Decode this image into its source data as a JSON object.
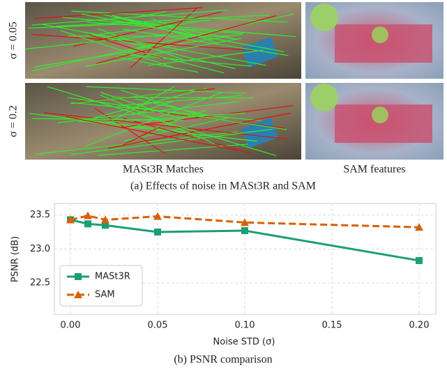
{
  "figure": {
    "row_labels": [
      "σ = 0.05",
      "σ = 0.2"
    ],
    "column_labels": [
      "MASt3R Matches",
      "SAM features"
    ],
    "caption_a": "(a) Effects of noise in MASt3R and SAM",
    "caption_b": "(b) PSNR comparison"
  },
  "chart_data": {
    "type": "line",
    "x_label": "Noise STD (σ)",
    "y_label": "PSNR (dB)",
    "x": [
      0,
      0.01,
      0.02,
      0.05,
      0.1,
      0.2
    ],
    "series": [
      {
        "name": "MASt3R",
        "color": "#1b9e77",
        "marker": "square",
        "dash": "solid",
        "values": [
          23.43,
          23.37,
          23.35,
          23.25,
          23.27,
          22.83
        ]
      },
      {
        "name": "SAM",
        "color": "#d95f02",
        "marker": "triangle",
        "dash": "dashed",
        "values": [
          23.43,
          23.49,
          23.43,
          23.48,
          23.39,
          23.32
        ]
      }
    ],
    "xlim": [
      -0.0092,
      0.2096
    ],
    "ylim": [
      22.04,
      23.67
    ],
    "xticks": [
      {
        "value": 0,
        "label": "0.00"
      },
      {
        "value": 0.05,
        "label": "0.05"
      },
      {
        "value": 0.1,
        "label": "0.10"
      },
      {
        "value": 0.15,
        "label": "0.15"
      },
      {
        "value": 0.2,
        "label": "0.20"
      }
    ],
    "yticks": [
      22.5,
      {
        "value": 23,
        "label": "23.0"
      },
      23.5
    ],
    "grid": true,
    "legend": "lower left"
  }
}
